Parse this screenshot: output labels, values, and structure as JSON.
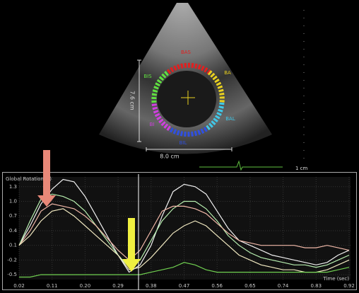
{
  "echo": {
    "labels": [
      {
        "text": "BAS",
        "color": "#e02020"
      },
      {
        "text": "BA",
        "color": "#e8d020"
      },
      {
        "text": "BAL",
        "color": "#40c8e8"
      },
      {
        "text": "BIL",
        "color": "#3050e0"
      },
      {
        "text": "BI",
        "color": "#d040e0"
      },
      {
        "text": "BIS",
        "color": "#60e040"
      }
    ],
    "height_label": "7.6 cm",
    "width_label": "8.0 cm",
    "scale_label": "1 cm"
  },
  "chart_data": {
    "type": "line",
    "title": "Global Rotation (°)",
    "x_label": "Time (sec)",
    "x": [
      0.02,
      0.05,
      0.08,
      0.11,
      0.14,
      0.17,
      0.2,
      0.23,
      0.26,
      0.29,
      0.32,
      0.35,
      0.38,
      0.41,
      0.44,
      0.47,
      0.5,
      0.53,
      0.56,
      0.59,
      0.62,
      0.65,
      0.68,
      0.71,
      0.74,
      0.77,
      0.8,
      0.83,
      0.86,
      0.89,
      0.92
    ],
    "series": [
      {
        "color": "#f0f0f0",
        "values": [
          0.1,
          0.5,
          0.95,
          1.25,
          1.45,
          1.4,
          1.1,
          0.7,
          0.3,
          -0.1,
          -0.45,
          -0.3,
          0.1,
          0.7,
          1.2,
          1.35,
          1.3,
          1.15,
          0.8,
          0.45,
          0.2,
          0.1,
          0.0,
          -0.1,
          -0.15,
          -0.2,
          -0.25,
          -0.3,
          -0.25,
          -0.1,
          0.0
        ]
      },
      {
        "color": "#b8f0b0",
        "values": [
          0.1,
          0.6,
          1.05,
          1.15,
          1.1,
          1.0,
          0.8,
          0.5,
          0.2,
          -0.1,
          -0.35,
          -0.2,
          0.2,
          0.6,
          0.85,
          1.0,
          1.0,
          0.85,
          0.6,
          0.3,
          0.1,
          -0.05,
          -0.15,
          -0.2,
          -0.25,
          -0.3,
          -0.3,
          -0.35,
          -0.3,
          -0.2,
          -0.1
        ]
      },
      {
        "color": "#f0b8a8",
        "values": [
          0.1,
          0.4,
          0.8,
          0.95,
          0.9,
          0.85,
          0.7,
          0.5,
          0.25,
          0.0,
          -0.2,
          0.0,
          0.4,
          0.8,
          0.9,
          0.9,
          0.85,
          0.75,
          0.55,
          0.35,
          0.2,
          0.15,
          0.1,
          0.1,
          0.1,
          0.1,
          0.05,
          0.05,
          0.1,
          0.05,
          0.0
        ]
      },
      {
        "color": "#f0e8c0",
        "values": [
          0.1,
          0.3,
          0.6,
          0.8,
          0.85,
          0.7,
          0.5,
          0.3,
          0.1,
          -0.1,
          -0.4,
          -0.35,
          -0.15,
          0.1,
          0.35,
          0.5,
          0.6,
          0.5,
          0.3,
          0.1,
          -0.1,
          -0.2,
          -0.3,
          -0.35,
          -0.4,
          -0.4,
          -0.45,
          -0.45,
          -0.4,
          -0.3,
          -0.2
        ]
      },
      {
        "color": "#70d050",
        "values": [
          -0.55,
          -0.55,
          -0.5,
          -0.5,
          -0.5,
          -0.5,
          -0.5,
          -0.5,
          -0.5,
          -0.5,
          -0.5,
          -0.5,
          -0.45,
          -0.4,
          -0.35,
          -0.25,
          -0.3,
          -0.4,
          -0.45,
          -0.45,
          -0.45,
          -0.45,
          -0.45,
          -0.45,
          -0.45,
          -0.45,
          -0.45,
          -0.45,
          -0.45,
          -0.4,
          -0.35
        ]
      }
    ],
    "xlim": [
      0.02,
      0.92
    ],
    "xticks": [
      0.02,
      0.11,
      {
        "value": 0.2,
        "label": "0.20"
      },
      0.29,
      0.38,
      0.47,
      0.56,
      0.65,
      0.74,
      0.83,
      0.92
    ],
    "ylim": [
      -0.6,
      1.5
    ],
    "yticks": [
      1.3,
      {
        "value": 1,
        "label": "1.0"
      },
      0.7,
      0.4,
      0.1,
      -0.2,
      -0.5
    ],
    "grid": true
  }
}
